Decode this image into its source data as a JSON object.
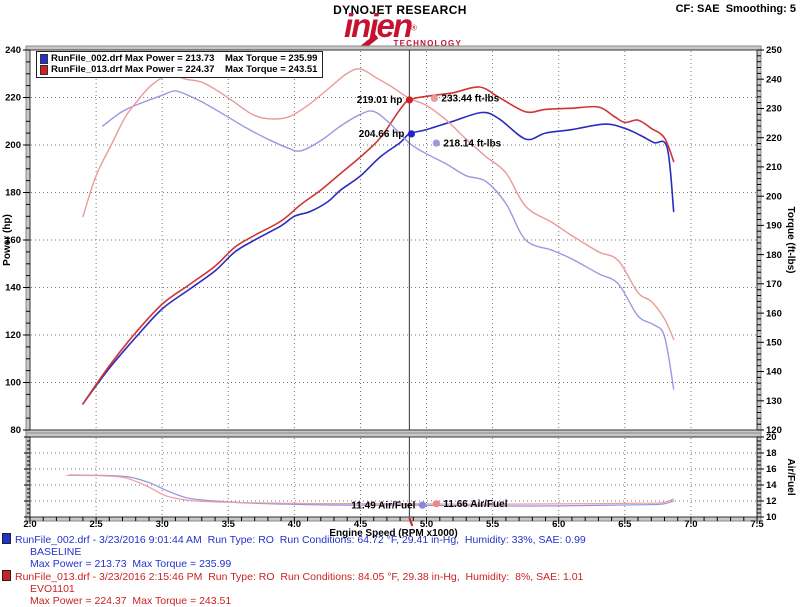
{
  "header": {
    "title": "DYNOJET RESEARCH",
    "cf_label": "CF: SAE  Smoothing: 5",
    "logo_text": "injen",
    "logo_reg": "®",
    "logo_sub": "TECHNOLOGY",
    "logo_color": "#c41230"
  },
  "legend": {
    "items": [
      {
        "swatch": "#2233cc",
        "text": "RunFile_002.drf Max Power = 213.73    Max Torque = 235.99"
      },
      {
        "swatch": "#cc2222",
        "text": "RunFile_013.drf Max Power = 224.37    Max Torque = 243.51"
      }
    ]
  },
  "footer": {
    "runs": [
      {
        "color": "#2233cc",
        "file_line": "RunFile_002.drf - 3/23/2016 9:01:44 AM  Run Type: RO  Run Conditions: 64.72 °F, 29.41 in-Hg,  Humidity: 33%, SAE: 0.99",
        "name_line": "BASELINE",
        "max_line": "Max Power = 213.73  Max Torque = 235.99"
      },
      {
        "color": "#cc2222",
        "file_line": "RunFile_013.drf - 3/23/2016 2:15:46 PM  Run Type: RO  Run Conditions: 84.05 °F, 29.38 in-Hg,  Humidity:  8%, SAE: 1.01",
        "name_line": "EVO1101",
        "max_line": "Max Power = 224.37  Max Torque = 243.51"
      }
    ]
  },
  "chart_data": {
    "type": "line",
    "xlabel": "Engine Speed (RPM x1000)",
    "x_range": [
      2.0,
      7.5
    ],
    "x_major": 0.5,
    "x_minor": 0.1,
    "grid": "dotted",
    "main_panel": {
      "left_label": "Power (hp)",
      "left_range": [
        80,
        240
      ],
      "left_major": 20,
      "left_minor": 5,
      "right_label": "Torque (ft-lbs)",
      "right_range": [
        120,
        250
      ],
      "right_major": 10,
      "right_minor": 2
    },
    "airfuel_panel": {
      "right_label": "Air/Fuel",
      "range": [
        10,
        20
      ],
      "major": 2,
      "minor": 0.5
    },
    "series": [
      {
        "name": "baseline power",
        "run": "RunFile_002.drf",
        "color": "#2b2bbe",
        "panel": "main",
        "axis": "left",
        "width": 1.6,
        "points": [
          [
            2.4,
            91
          ],
          [
            2.6,
            106
          ],
          [
            2.8,
            119
          ],
          [
            3.0,
            131
          ],
          [
            3.2,
            139
          ],
          [
            3.4,
            147
          ],
          [
            3.55,
            155
          ],
          [
            3.7,
            160
          ],
          [
            3.9,
            166
          ],
          [
            4.0,
            170
          ],
          [
            4.12,
            172
          ],
          [
            4.25,
            176
          ],
          [
            4.35,
            181
          ],
          [
            4.5,
            187
          ],
          [
            4.65,
            195
          ],
          [
            4.8,
            201
          ],
          [
            4.87,
            204.7
          ],
          [
            5.0,
            206.5
          ],
          [
            5.2,
            210
          ],
          [
            5.42,
            213.7
          ],
          [
            5.55,
            211
          ],
          [
            5.75,
            202.5
          ],
          [
            5.9,
            205
          ],
          [
            6.1,
            206.5
          ],
          [
            6.35,
            208.8
          ],
          [
            6.5,
            207
          ],
          [
            6.62,
            204
          ],
          [
            6.72,
            201
          ],
          [
            6.82,
            199
          ],
          [
            6.87,
            172
          ]
        ]
      },
      {
        "name": "evo1101 power",
        "run": "RunFile_013.drf",
        "color": "#cf3535",
        "panel": "main",
        "axis": "left",
        "width": 1.6,
        "points": [
          [
            2.4,
            91
          ],
          [
            2.6,
            107
          ],
          [
            2.8,
            121
          ],
          [
            3.0,
            133
          ],
          [
            3.2,
            141
          ],
          [
            3.4,
            149
          ],
          [
            3.55,
            157
          ],
          [
            3.7,
            162
          ],
          [
            3.9,
            168
          ],
          [
            4.05,
            175
          ],
          [
            4.2,
            181
          ],
          [
            4.35,
            188
          ],
          [
            4.5,
            195
          ],
          [
            4.65,
            203
          ],
          [
            4.8,
            215
          ],
          [
            4.87,
            219
          ],
          [
            5.0,
            220.5
          ],
          [
            5.2,
            222
          ],
          [
            5.4,
            224.4
          ],
          [
            5.55,
            220
          ],
          [
            5.75,
            214
          ],
          [
            5.9,
            215
          ],
          [
            6.1,
            215.5
          ],
          [
            6.3,
            216
          ],
          [
            6.42,
            212
          ],
          [
            6.5,
            209.5
          ],
          [
            6.6,
            210.5
          ],
          [
            6.7,
            207
          ],
          [
            6.8,
            203
          ],
          [
            6.87,
            193
          ]
        ]
      },
      {
        "name": "baseline torque",
        "run": "RunFile_002.drf",
        "color": "#9a9ae0",
        "panel": "main",
        "axis": "right",
        "width": 1.4,
        "points": [
          [
            2.55,
            224
          ],
          [
            2.7,
            229
          ],
          [
            2.85,
            232
          ],
          [
            3.0,
            234.5
          ],
          [
            3.1,
            236
          ],
          [
            3.22,
            234
          ],
          [
            3.35,
            231
          ],
          [
            3.5,
            227
          ],
          [
            3.65,
            223
          ],
          [
            3.8,
            219.5
          ],
          [
            3.95,
            216.5
          ],
          [
            4.05,
            215.5
          ],
          [
            4.2,
            219
          ],
          [
            4.35,
            224
          ],
          [
            4.5,
            228
          ],
          [
            4.6,
            229
          ],
          [
            4.72,
            225
          ],
          [
            4.87,
            218.1
          ],
          [
            5.0,
            214.5
          ],
          [
            5.15,
            211
          ],
          [
            5.3,
            207
          ],
          [
            5.45,
            205
          ],
          [
            5.6,
            197.5
          ],
          [
            5.75,
            185
          ],
          [
            5.95,
            181.5
          ],
          [
            6.1,
            178.5
          ],
          [
            6.3,
            173.5
          ],
          [
            6.45,
            170
          ],
          [
            6.6,
            159
          ],
          [
            6.72,
            156
          ],
          [
            6.8,
            152
          ],
          [
            6.87,
            134
          ]
        ]
      },
      {
        "name": "evo1101 torque",
        "run": "RunFile_013.drf",
        "color": "#eb9a9a",
        "panel": "main",
        "axis": "right",
        "width": 1.4,
        "points": [
          [
            2.4,
            193
          ],
          [
            2.5,
            207
          ],
          [
            2.62,
            218
          ],
          [
            2.72,
            227
          ],
          [
            2.82,
            233
          ],
          [
            2.92,
            238
          ],
          [
            3.05,
            241.5
          ],
          [
            3.18,
            240
          ],
          [
            3.3,
            239
          ],
          [
            3.42,
            236
          ],
          [
            3.55,
            232
          ],
          [
            3.68,
            228
          ],
          [
            3.8,
            226.5
          ],
          [
            3.95,
            227
          ],
          [
            4.1,
            231
          ],
          [
            4.25,
            236.5
          ],
          [
            4.4,
            242
          ],
          [
            4.5,
            243.5
          ],
          [
            4.62,
            240.5
          ],
          [
            4.75,
            237
          ],
          [
            4.87,
            233.4
          ],
          [
            5.0,
            231
          ],
          [
            5.15,
            226
          ],
          [
            5.3,
            219.5
          ],
          [
            5.45,
            213.5
          ],
          [
            5.6,
            208
          ],
          [
            5.75,
            196.5
          ],
          [
            5.95,
            191
          ],
          [
            6.1,
            186.5
          ],
          [
            6.3,
            181
          ],
          [
            6.45,
            178
          ],
          [
            6.6,
            167
          ],
          [
            6.7,
            164
          ],
          [
            6.8,
            158
          ],
          [
            6.87,
            151
          ]
        ]
      },
      {
        "name": "baseline airfuel",
        "run": "RunFile_002.drf",
        "color": "#9494dc",
        "panel": "airfuel",
        "axis": "af",
        "width": 1.2,
        "points": [
          [
            2.3,
            15.25
          ],
          [
            2.55,
            15.2
          ],
          [
            2.75,
            15.0
          ],
          [
            2.9,
            14.3
          ],
          [
            3.05,
            13.2
          ],
          [
            3.2,
            12.35
          ],
          [
            3.4,
            12.0
          ],
          [
            3.65,
            11.75
          ],
          [
            3.95,
            11.6
          ],
          [
            4.25,
            11.5
          ],
          [
            4.6,
            11.48
          ],
          [
            4.87,
            11.49
          ],
          [
            5.3,
            11.4
          ],
          [
            5.8,
            11.38
          ],
          [
            6.3,
            11.45
          ],
          [
            6.6,
            11.52
          ],
          [
            6.78,
            11.6
          ],
          [
            6.87,
            12.0
          ]
        ]
      },
      {
        "name": "evo1101 airfuel",
        "run": "RunFile_013.drf",
        "color": "#eb9e9e",
        "panel": "airfuel",
        "axis": "af",
        "width": 1.2,
        "points": [
          [
            2.28,
            15.2
          ],
          [
            2.55,
            15.15
          ],
          [
            2.72,
            14.9
          ],
          [
            2.88,
            13.9
          ],
          [
            3.02,
            12.7
          ],
          [
            3.15,
            12.2
          ],
          [
            3.3,
            11.95
          ],
          [
            3.6,
            11.8
          ],
          [
            3.9,
            11.72
          ],
          [
            4.2,
            11.68
          ],
          [
            4.6,
            11.66
          ],
          [
            4.87,
            11.66
          ],
          [
            5.3,
            11.6
          ],
          [
            5.8,
            11.62
          ],
          [
            6.3,
            11.68
          ],
          [
            6.6,
            11.72
          ],
          [
            6.78,
            11.78
          ],
          [
            6.87,
            12.25
          ]
        ]
      }
    ],
    "cursor": {
      "rpm": 4.87,
      "annotations": [
        {
          "label": "219.01 hp",
          "value": 219.01,
          "axis": "left",
          "dot_color": "#cc2222",
          "dx": 0,
          "side": "left"
        },
        {
          "label": "233.44 ft-lbs",
          "value": 233.44,
          "axis": "right",
          "dot_color": "#eb9a9a",
          "dx": 25,
          "side": "right"
        },
        {
          "label": "204.66 hp",
          "value": 204.66,
          "axis": "left",
          "dot_color": "#2222cc",
          "dx": 2,
          "side": "left"
        },
        {
          "label": "218.14 ft-lbs",
          "value": 218.14,
          "axis": "right",
          "dot_color": "#9a9ae0",
          "dx": 27,
          "side": "right"
        },
        {
          "label": "11.49 Air/Fuel",
          "value": 11.49,
          "axis": "af",
          "dot_color": "#8888dd",
          "dx": 13,
          "side": "left"
        },
        {
          "label": "11.66 Air/Fuel",
          "value": 11.66,
          "axis": "af",
          "dot_color": "#ee8888",
          "dx": 27,
          "side": "right"
        }
      ]
    }
  }
}
